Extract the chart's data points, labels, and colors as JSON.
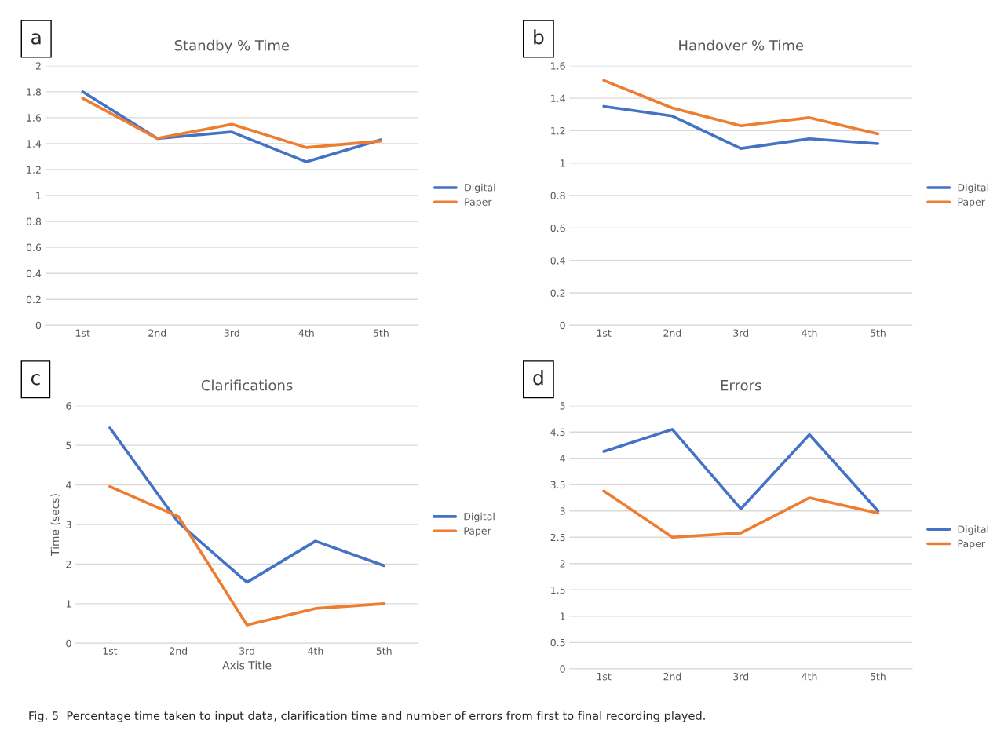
{
  "chart_data": [
    {
      "type": "line",
      "title": "Standby % Time",
      "categories": [
        "1st",
        "2nd",
        "3rd",
        "4th",
        "5th"
      ],
      "ylim": [
        0,
        2
      ],
      "yticks": [
        0,
        0.2,
        0.4,
        0.6,
        0.8,
        1,
        1.2,
        1.4,
        1.6,
        1.8,
        2
      ],
      "grid": "y",
      "legend": "right",
      "marker": "none",
      "line_style": "solid",
      "annotations": [
        "a"
      ],
      "series": [
        {
          "name": "Digital",
          "color": "#4472c4",
          "values": [
            1.8,
            1.44,
            1.49,
            1.26,
            1.43
          ]
        },
        {
          "name": "Paper",
          "color": "#ed7d31",
          "values": [
            1.75,
            1.44,
            1.55,
            1.37,
            1.42
          ]
        }
      ]
    },
    {
      "type": "line",
      "title": "Handover % Time",
      "categories": [
        "1st",
        "2nd",
        "3rd",
        "4th",
        "5th"
      ],
      "ylim": [
        0,
        1.6
      ],
      "yticks": [
        0,
        0.2,
        0.4,
        0.6,
        0.8,
        1,
        1.2,
        1.4,
        1.6
      ],
      "grid": "y",
      "legend": "right",
      "marker": "none",
      "line_style": "solid",
      "annotations": [
        "b"
      ],
      "series": [
        {
          "name": "Digital",
          "color": "#4472c4",
          "values": [
            1.35,
            1.29,
            1.09,
            1.15,
            1.12
          ]
        },
        {
          "name": "Paper",
          "color": "#ed7d31",
          "values": [
            1.51,
            1.34,
            1.23,
            1.28,
            1.18
          ]
        }
      ]
    },
    {
      "type": "line",
      "title": "Clarifications",
      "xlabel": "Axis Title",
      "ylabel": "Time (secs)",
      "categories": [
        "1st",
        "2nd",
        "3rd",
        "4th",
        "5th"
      ],
      "ylim": [
        0,
        6
      ],
      "yticks": [
        0,
        1,
        2,
        3,
        4,
        5,
        6
      ],
      "grid": "y",
      "legend": "right",
      "marker": "none",
      "line_style": "solid",
      "annotations": [
        "c"
      ],
      "series": [
        {
          "name": "Digital",
          "color": "#4472c4",
          "values": [
            5.44,
            3.05,
            1.54,
            2.58,
            1.96
          ]
        },
        {
          "name": "Paper",
          "color": "#ed7d31",
          "values": [
            3.96,
            3.2,
            0.46,
            0.88,
            1.0
          ]
        }
      ]
    },
    {
      "type": "line",
      "title": "Errors",
      "categories": [
        "1st",
        "2nd",
        "3rd",
        "4th",
        "5th"
      ],
      "ylim": [
        0,
        5
      ],
      "yticks": [
        0,
        0.5,
        1,
        1.5,
        2,
        2.5,
        3,
        3.5,
        4,
        4.5,
        5
      ],
      "grid": "y",
      "legend": "right",
      "marker": "none",
      "line_style": "solid",
      "annotations": [
        "d",
        "Fig. 5  Percentage time taken to input data, clarification time and number of errors from first to final recording played."
      ],
      "series": [
        {
          "name": "Digital",
          "color": "#4472c4",
          "values": [
            4.13,
            4.55,
            3.04,
            4.45,
            3.0
          ]
        },
        {
          "name": "Paper",
          "color": "#ed7d31",
          "values": [
            3.38,
            2.5,
            2.58,
            3.25,
            2.96
          ]
        }
      ]
    }
  ]
}
